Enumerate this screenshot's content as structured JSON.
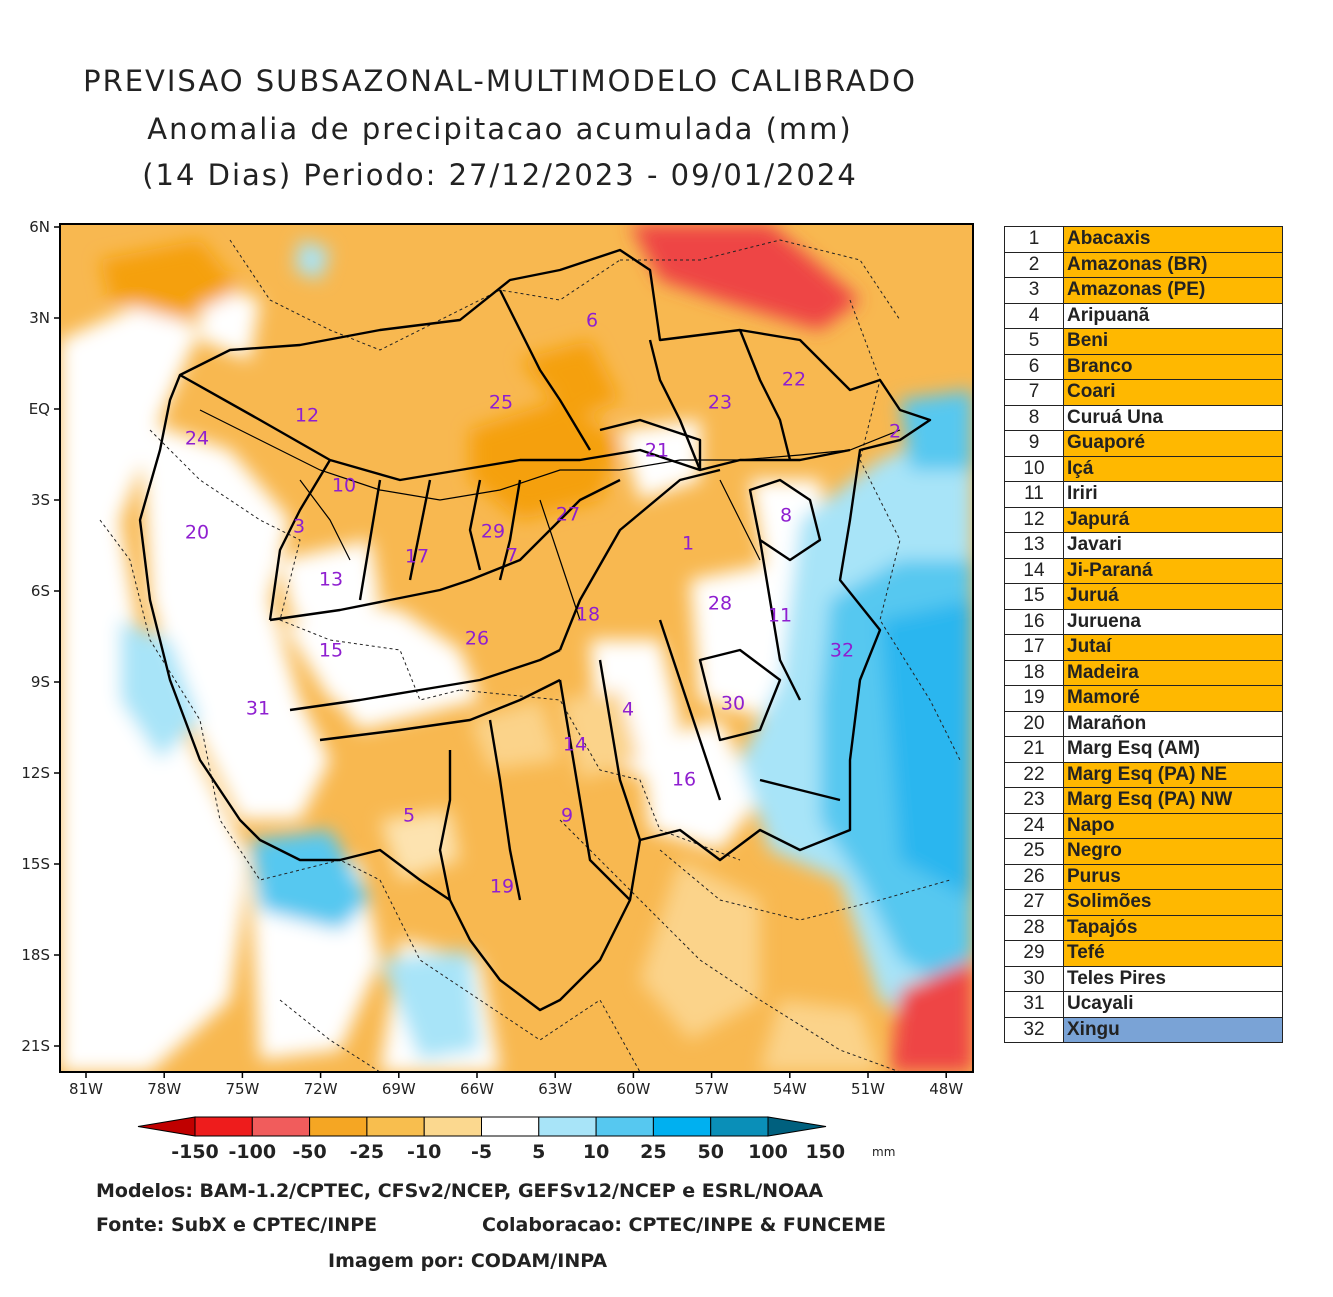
{
  "title": {
    "line1": "PREVISAO SUBSAZONAL-MULTIMODELO CALIBRADO",
    "line2": "Anomalia de precipitacao acumulada (mm)",
    "line3": "(14 Dias) Periodo: 27/12/2023 - 09/01/2024"
  },
  "axes": {
    "lat_ticks": [
      "6N",
      "3N",
      "EQ",
      "3S",
      "6S",
      "9S",
      "12S",
      "15S",
      "18S",
      "21S"
    ],
    "lon_ticks": [
      "81W",
      "78W",
      "75W",
      "72W",
      "69W",
      "66W",
      "63W",
      "60W",
      "57W",
      "54W",
      "51W",
      "48W"
    ]
  },
  "colorbar": {
    "labels": [
      "-150",
      "-100",
      "-50",
      "-25",
      "-10",
      "-5",
      "5",
      "10",
      "25",
      "50",
      "100",
      "150"
    ],
    "unit": "mm",
    "colors": [
      "#c00000",
      "#ee1c1c",
      "#f15c5c",
      "#f5a623",
      "#f8be4e",
      "#fbd88f",
      "#ffffff",
      "#a8e4f8",
      "#56c8f0",
      "#00b0f0",
      "#0a8fb8",
      "#00607e"
    ]
  },
  "basin_labels": [
    "1",
    "2",
    "3",
    "4",
    "5",
    "6",
    "7",
    "8",
    "9",
    "10",
    "11",
    "12",
    "13",
    "14",
    "15",
    "16",
    "17",
    "18",
    "19",
    "20",
    "21",
    "22",
    "23",
    "24",
    "25",
    "26",
    "27",
    "28",
    "29",
    "30",
    "31",
    "32"
  ],
  "basins": [
    {
      "num": "1",
      "name": "Abacaxis",
      "color": "#ffb800"
    },
    {
      "num": "2",
      "name": "Amazonas (BR)",
      "color": "#ffb800"
    },
    {
      "num": "3",
      "name": "Amazonas (PE)",
      "color": "#ffb800"
    },
    {
      "num": "4",
      "name": "Aripuanã",
      "color": "#ffffff"
    },
    {
      "num": "5",
      "name": "Beni",
      "color": "#ffb800"
    },
    {
      "num": "6",
      "name": "Branco",
      "color": "#ffb800"
    },
    {
      "num": "7",
      "name": "Coari",
      "color": "#ffb800"
    },
    {
      "num": "8",
      "name": "Curuá Una",
      "color": "#ffffff"
    },
    {
      "num": "9",
      "name": "Guaporé",
      "color": "#ffb800"
    },
    {
      "num": "10",
      "name": "Içá",
      "color": "#ffb800"
    },
    {
      "num": "11",
      "name": "Iriri",
      "color": "#ffffff"
    },
    {
      "num": "12",
      "name": "Japurá",
      "color": "#ffb800"
    },
    {
      "num": "13",
      "name": "Javari",
      "color": "#ffffff"
    },
    {
      "num": "14",
      "name": "Ji-Paraná",
      "color": "#ffb800"
    },
    {
      "num": "15",
      "name": "Juruá",
      "color": "#ffb800"
    },
    {
      "num": "16",
      "name": "Juruena",
      "color": "#ffffff"
    },
    {
      "num": "17",
      "name": "Jutaí",
      "color": "#ffb800"
    },
    {
      "num": "18",
      "name": "Madeira",
      "color": "#ffb800"
    },
    {
      "num": "19",
      "name": "Mamoré",
      "color": "#ffb800"
    },
    {
      "num": "20",
      "name": "Marañon",
      "color": "#ffffff"
    },
    {
      "num": "21",
      "name": "Marg Esq (AM)",
      "color": "#ffffff"
    },
    {
      "num": "22",
      "name": "Marg Esq (PA) NE",
      "color": "#ffb800"
    },
    {
      "num": "23",
      "name": "Marg Esq (PA) NW",
      "color": "#ffb800"
    },
    {
      "num": "24",
      "name": "Napo",
      "color": "#ffb800"
    },
    {
      "num": "25",
      "name": "Negro",
      "color": "#ffb800"
    },
    {
      "num": "26",
      "name": "Purus",
      "color": "#ffb800"
    },
    {
      "num": "27",
      "name": "Solimões",
      "color": "#ffb800"
    },
    {
      "num": "28",
      "name": "Tapajós",
      "color": "#ffb800"
    },
    {
      "num": "29",
      "name": "Tefé",
      "color": "#ffb800"
    },
    {
      "num": "30",
      "name": "Teles Pires",
      "color": "#ffffff"
    },
    {
      "num": "31",
      "name": "Ucayali",
      "color": "#ffffff"
    },
    {
      "num": "32",
      "name": "Xingu",
      "color": "#7aa3d6"
    }
  ],
  "credits": {
    "models": "Modelos: BAM-1.2/CPTEC, CFSv2/NCEP, GEFSv12/NCEP e ESRL/NOAA",
    "source": "Fonte: SubX e CPTEC/INPE",
    "collab": "Colaboracao: CPTEC/INPE & FUNCEME",
    "image_by": "Imagem por: CODAM/INPA"
  }
}
